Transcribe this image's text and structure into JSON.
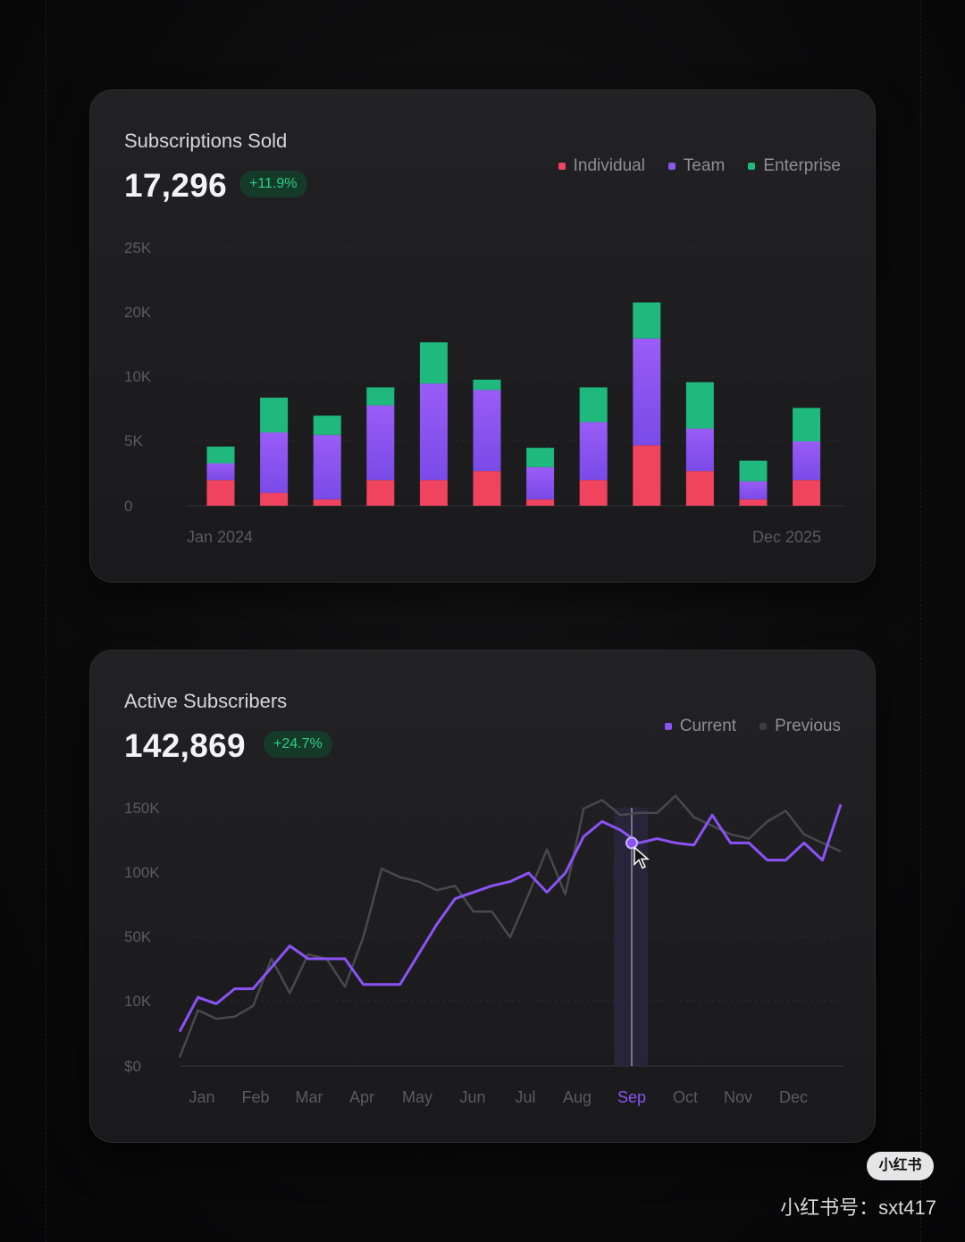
{
  "colors": {
    "individual": "#f0435e",
    "team": "#8a55f0",
    "enterprise": "#1fb97d",
    "current": "#8b52f6",
    "previous": "#4a4a50",
    "badge_text": "#2bcf83"
  },
  "card1": {
    "title": "Subscriptions Sold",
    "value": "17,296",
    "change": "+11.9%",
    "legend": [
      "Individual",
      "Team",
      "Enterprise"
    ]
  },
  "card2": {
    "title": "Active Subscribers",
    "value": "142,869",
    "change": "+24.7%",
    "legend": [
      "Current",
      "Previous"
    ]
  },
  "watermark": {
    "logo": "小红书",
    "text": "小红书号：sxt417"
  },
  "chart_data": [
    {
      "type": "bar",
      "stacked": true,
      "title": "Subscriptions Sold",
      "y_ticks": [
        "25K",
        "20K",
        "10K",
        "5K",
        "0"
      ],
      "x_labels": [
        "Jan 2024",
        "Dec 2025"
      ],
      "bar_count": 12,
      "grid": true,
      "legend_position": "top-right",
      "series": [
        {
          "name": "Individual",
          "values": [
            2,
            1,
            0.5,
            2,
            2,
            2.7,
            0.5,
            2,
            4.7,
            2.7,
            0.5,
            2
          ]
        },
        {
          "name": "Team",
          "values": [
            1.3,
            4.7,
            5,
            5.8,
            7.5,
            6.3,
            2.5,
            4.5,
            8.3,
            3.3,
            1.4,
            3
          ]
        },
        {
          "name": "Enterprise",
          "values": [
            1.3,
            2.7,
            1.5,
            1.4,
            3.2,
            0.8,
            1.5,
            2.7,
            2.8,
            3.6,
            1.6,
            2.6
          ]
        }
      ]
    },
    {
      "type": "line",
      "title": "Active Subscribers",
      "y_ticks": [
        "150K",
        "100K",
        "50K",
        "10K",
        "$0"
      ],
      "x_labels": [
        "Jan",
        "Feb",
        "Mar",
        "Apr",
        "May",
        "Jun",
        "Jul",
        "Aug",
        "Sep",
        "Oct",
        "Nov",
        "Dec"
      ],
      "highlighted_x": "Sep",
      "grid": true,
      "legend_position": "top-right",
      "series": [
        {
          "name": "Current",
          "values": [
            0.8,
            1.6,
            1.45,
            1.8,
            1.8,
            2.3,
            2.8,
            2.5,
            2.5,
            2.5,
            1.9,
            1.9,
            1.9,
            2.6,
            3.3,
            3.9,
            4.05,
            4.2,
            4.3,
            4.5,
            4.05,
            4.5,
            5.35,
            5.7,
            5.5,
            5.2,
            5.3,
            5.2,
            5.15,
            5.85,
            5.2,
            5.2,
            4.8,
            4.8,
            5.2,
            4.8,
            6.1
          ]
        },
        {
          "name": "Previous",
          "values": [
            0.2,
            1.3,
            1.1,
            1.15,
            1.4,
            2.5,
            1.7,
            2.6,
            2.5,
            1.85,
            3.0,
            4.6,
            4.4,
            4.3,
            4.1,
            4.2,
            3.6,
            3.6,
            3.0,
            4.0,
            5.05,
            4.0,
            6.0,
            6.2,
            5.85,
            5.9,
            5.9,
            6.3,
            5.8,
            5.6,
            5.4,
            5.3,
            5.7,
            5.95,
            5.4,
            5.2,
            5.0
          ]
        }
      ]
    }
  ]
}
